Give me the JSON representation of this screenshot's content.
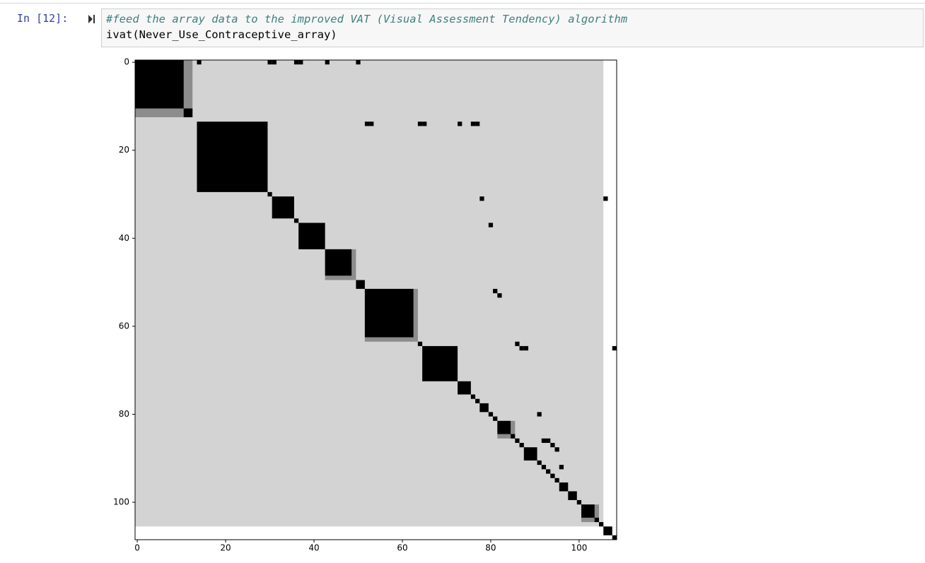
{
  "notebook": {
    "prompt": "In [12]:",
    "code": [
      "#feed the array data to the improved VAT (Visual Assessment Tendency) algorithm",
      "ivat(Never_Use_Contraceptive_array)"
    ]
  },
  "chart_data": {
    "type": "matrix",
    "xlim": [
      -0.5,
      108.5
    ],
    "ylim": [
      108.5,
      -0.5
    ],
    "xticks": [
      0,
      20,
      40,
      60,
      80,
      100
    ],
    "yticks": [
      0,
      20,
      40,
      60,
      80,
      100
    ],
    "background": {
      "color": "#d3d3d3",
      "extent": [
        0,
        105
      ]
    },
    "squares": [
      [
        0,
        12,
        "#8c8c8c"
      ],
      [
        0,
        10,
        "#000000"
      ],
      [
        11,
        12,
        "#000000"
      ],
      [
        14,
        29,
        "#000000"
      ],
      [
        30,
        30,
        "#000000"
      ],
      [
        31,
        35,
        "#000000"
      ],
      [
        36,
        36,
        "#000000"
      ],
      [
        37,
        42,
        "#000000"
      ],
      [
        43,
        49,
        "#8c8c8c"
      ],
      [
        43,
        48,
        "#000000"
      ],
      [
        50,
        51,
        "#000000"
      ],
      [
        52,
        63,
        "#8c8c8c"
      ],
      [
        52,
        62,
        "#000000"
      ],
      [
        64,
        64,
        "#000000"
      ],
      [
        65,
        72,
        "#000000"
      ],
      [
        73,
        75,
        "#000000"
      ],
      [
        76,
        76,
        "#000000"
      ],
      [
        77,
        77,
        "#000000"
      ],
      [
        78,
        79,
        "#000000"
      ],
      [
        80,
        80,
        "#000000"
      ],
      [
        81,
        81,
        "#000000"
      ],
      [
        82,
        85,
        "#8c8c8c"
      ],
      [
        82,
        84,
        "#000000"
      ],
      [
        85,
        85,
        "#000000"
      ],
      [
        86,
        86,
        "#000000"
      ],
      [
        87,
        87,
        "#000000"
      ],
      [
        88,
        90,
        "#000000"
      ],
      [
        91,
        91,
        "#000000"
      ],
      [
        92,
        92,
        "#000000"
      ],
      [
        93,
        93,
        "#000000"
      ],
      [
        94,
        94,
        "#000000"
      ],
      [
        95,
        95,
        "#000000"
      ],
      [
        96,
        97,
        "#000000"
      ],
      [
        98,
        99,
        "#000000"
      ],
      [
        100,
        100,
        "#000000"
      ],
      [
        101,
        104,
        "#8c8c8c"
      ],
      [
        101,
        103,
        "#000000"
      ],
      [
        104,
        104,
        "#000000"
      ],
      [
        105,
        105,
        "#000000"
      ],
      [
        106,
        107,
        "#000000"
      ],
      [
        108,
        108,
        "#000000"
      ]
    ],
    "points": [
      [
        0,
        14
      ],
      [
        0,
        30
      ],
      [
        0,
        31
      ],
      [
        0,
        36
      ],
      [
        0,
        37
      ],
      [
        0,
        43
      ],
      [
        0,
        50
      ],
      [
        14,
        52
      ],
      [
        14,
        53
      ],
      [
        14,
        64
      ],
      [
        14,
        65
      ],
      [
        14,
        73
      ],
      [
        14,
        76
      ],
      [
        14,
        77
      ],
      [
        31,
        78
      ],
      [
        31,
        106
      ],
      [
        37,
        80
      ],
      [
        52,
        81
      ],
      [
        53,
        82
      ],
      [
        64,
        86
      ],
      [
        65,
        87
      ],
      [
        65,
        88
      ],
      [
        65,
        108
      ],
      [
        80,
        91
      ],
      [
        86,
        92
      ],
      [
        86,
        93
      ],
      [
        87,
        94
      ],
      [
        88,
        95
      ],
      [
        92,
        96
      ]
    ],
    "color": "#000000"
  }
}
